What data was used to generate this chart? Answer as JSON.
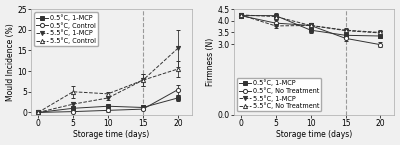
{
  "left": {
    "xlabel": "Storage time (days)",
    "ylabel": "Mould Incidence (%)",
    "xlim": [
      -1,
      22
    ],
    "ylim": [
      -0.5,
      25
    ],
    "yticks": [
      0,
      5,
      10,
      15,
      20,
      25
    ],
    "xticks": [
      0,
      5,
      10,
      15,
      20
    ],
    "vline_x": 15,
    "series": [
      {
        "label": "0.5°C, 1-MCP",
        "x": [
          0,
          5,
          10,
          15,
          20
        ],
        "y": [
          0,
          1.0,
          1.5,
          1.2,
          3.5
        ],
        "yerr": [
          0,
          0.4,
          0.4,
          0.5,
          0.8
        ],
        "marker": "s",
        "color": "#333333",
        "linestyle": "-",
        "fillstyle": "full"
      },
      {
        "label": "0.5°C, Control",
        "x": [
          0,
          5,
          10,
          15,
          20
        ],
        "y": [
          0,
          0.2,
          0.5,
          0.8,
          5.5
        ],
        "yerr": [
          0,
          0.2,
          0.3,
          0.3,
          1.2
        ],
        "marker": "o",
        "color": "#333333",
        "linestyle": "-",
        "fillstyle": "none"
      },
      {
        "label": "5.5°C, 1-MCP",
        "x": [
          0,
          5,
          10,
          15,
          20
        ],
        "y": [
          0,
          2.0,
          3.5,
          7.8,
          15.5
        ],
        "yerr": [
          0,
          0.5,
          0.5,
          1.5,
          4.5
        ],
        "marker": "v",
        "color": "#333333",
        "linestyle": "--",
        "fillstyle": "full"
      },
      {
        "label": "5.5°C, Control",
        "x": [
          0,
          5,
          10,
          15,
          20
        ],
        "y": [
          0,
          5.0,
          4.5,
          7.8,
          10.5
        ],
        "yerr": [
          0,
          1.5,
          0.5,
          1.5,
          2.0
        ],
        "marker": "^",
        "color": "#333333",
        "linestyle": "--",
        "fillstyle": "none"
      }
    ]
  },
  "right": {
    "xlabel": "Storage time (days)",
    "ylabel": "Firmness (N)",
    "xlim": [
      -1,
      22
    ],
    "ylim": [
      0,
      4.5
    ],
    "yticks": [
      0.0,
      3.0,
      3.5,
      4.0,
      4.5
    ],
    "xticks": [
      0,
      5,
      10,
      15,
      20
    ],
    "vline_x": 15,
    "series": [
      {
        "label": "0.5°C, 1-MCP",
        "x": [
          0,
          5,
          10,
          15,
          20
        ],
        "y": [
          4.22,
          4.22,
          3.6,
          3.38,
          3.35
        ],
        "yerr": [
          0.1,
          0.1,
          0.12,
          0.1,
          0.1
        ],
        "marker": "s",
        "color": "#333333",
        "linestyle": "-",
        "fillstyle": "full"
      },
      {
        "label": "0.5°C, No Treatment",
        "x": [
          0,
          5,
          10,
          15,
          20
        ],
        "y": [
          4.22,
          3.9,
          3.8,
          3.25,
          2.98
        ],
        "yerr": [
          0.1,
          0.12,
          0.12,
          0.1,
          0.12
        ],
        "marker": "o",
        "color": "#333333",
        "linestyle": "-",
        "fillstyle": "none"
      },
      {
        "label": "5.5°C, 1-MCP",
        "x": [
          0,
          5,
          10,
          15,
          20
        ],
        "y": [
          4.25,
          3.78,
          3.8,
          3.58,
          3.48
        ],
        "yerr": [
          0.1,
          0.1,
          0.1,
          0.08,
          0.1
        ],
        "marker": "v",
        "color": "#333333",
        "linestyle": "--",
        "fillstyle": "full"
      },
      {
        "label": "5.5°C, No Treatment",
        "x": [
          0,
          5,
          10,
          15,
          20
        ],
        "y": [
          4.25,
          4.18,
          3.8,
          3.6,
          3.5
        ],
        "yerr": [
          0.1,
          0.12,
          0.1,
          0.08,
          0.1
        ],
        "marker": "^",
        "color": "#333333",
        "linestyle": "--",
        "fillstyle": "none"
      }
    ]
  },
  "background_color": "#f0f0f0",
  "font_size": 5.5
}
